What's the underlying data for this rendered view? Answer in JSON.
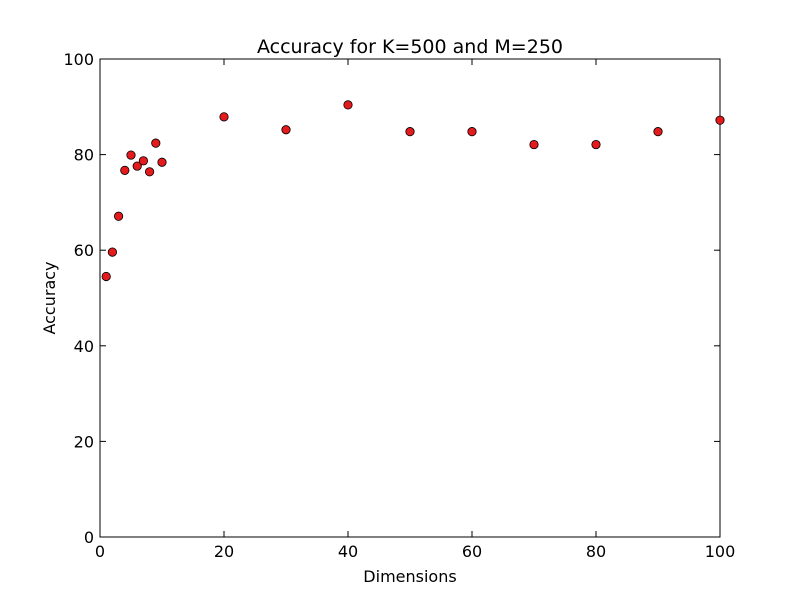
{
  "chart_data": {
    "type": "scatter",
    "title": "Accuracy for K=500 and M=250",
    "xlabel": "Dimensions",
    "ylabel": "Accuracy",
    "xlim": [
      0,
      100
    ],
    "ylim": [
      0,
      100
    ],
    "xticks": [
      0,
      20,
      40,
      60,
      80,
      100
    ],
    "yticks": [
      0,
      20,
      40,
      60,
      80,
      100
    ],
    "grid": false,
    "marker_color": "#e41a1c",
    "marker_edge": "#000000",
    "series": [
      {
        "x": [
          1,
          2,
          3,
          4,
          5,
          6,
          7,
          8,
          9,
          10,
          20,
          30,
          40,
          50,
          60,
          70,
          80,
          90,
          100
        ],
        "y": [
          54.5,
          59.6,
          67.1,
          76.7,
          79.9,
          77.6,
          78.7,
          76.4,
          82.4,
          78.4,
          87.9,
          85.2,
          90.4,
          84.8,
          84.8,
          82.1,
          82.1,
          84.8,
          87.2
        ]
      }
    ]
  }
}
